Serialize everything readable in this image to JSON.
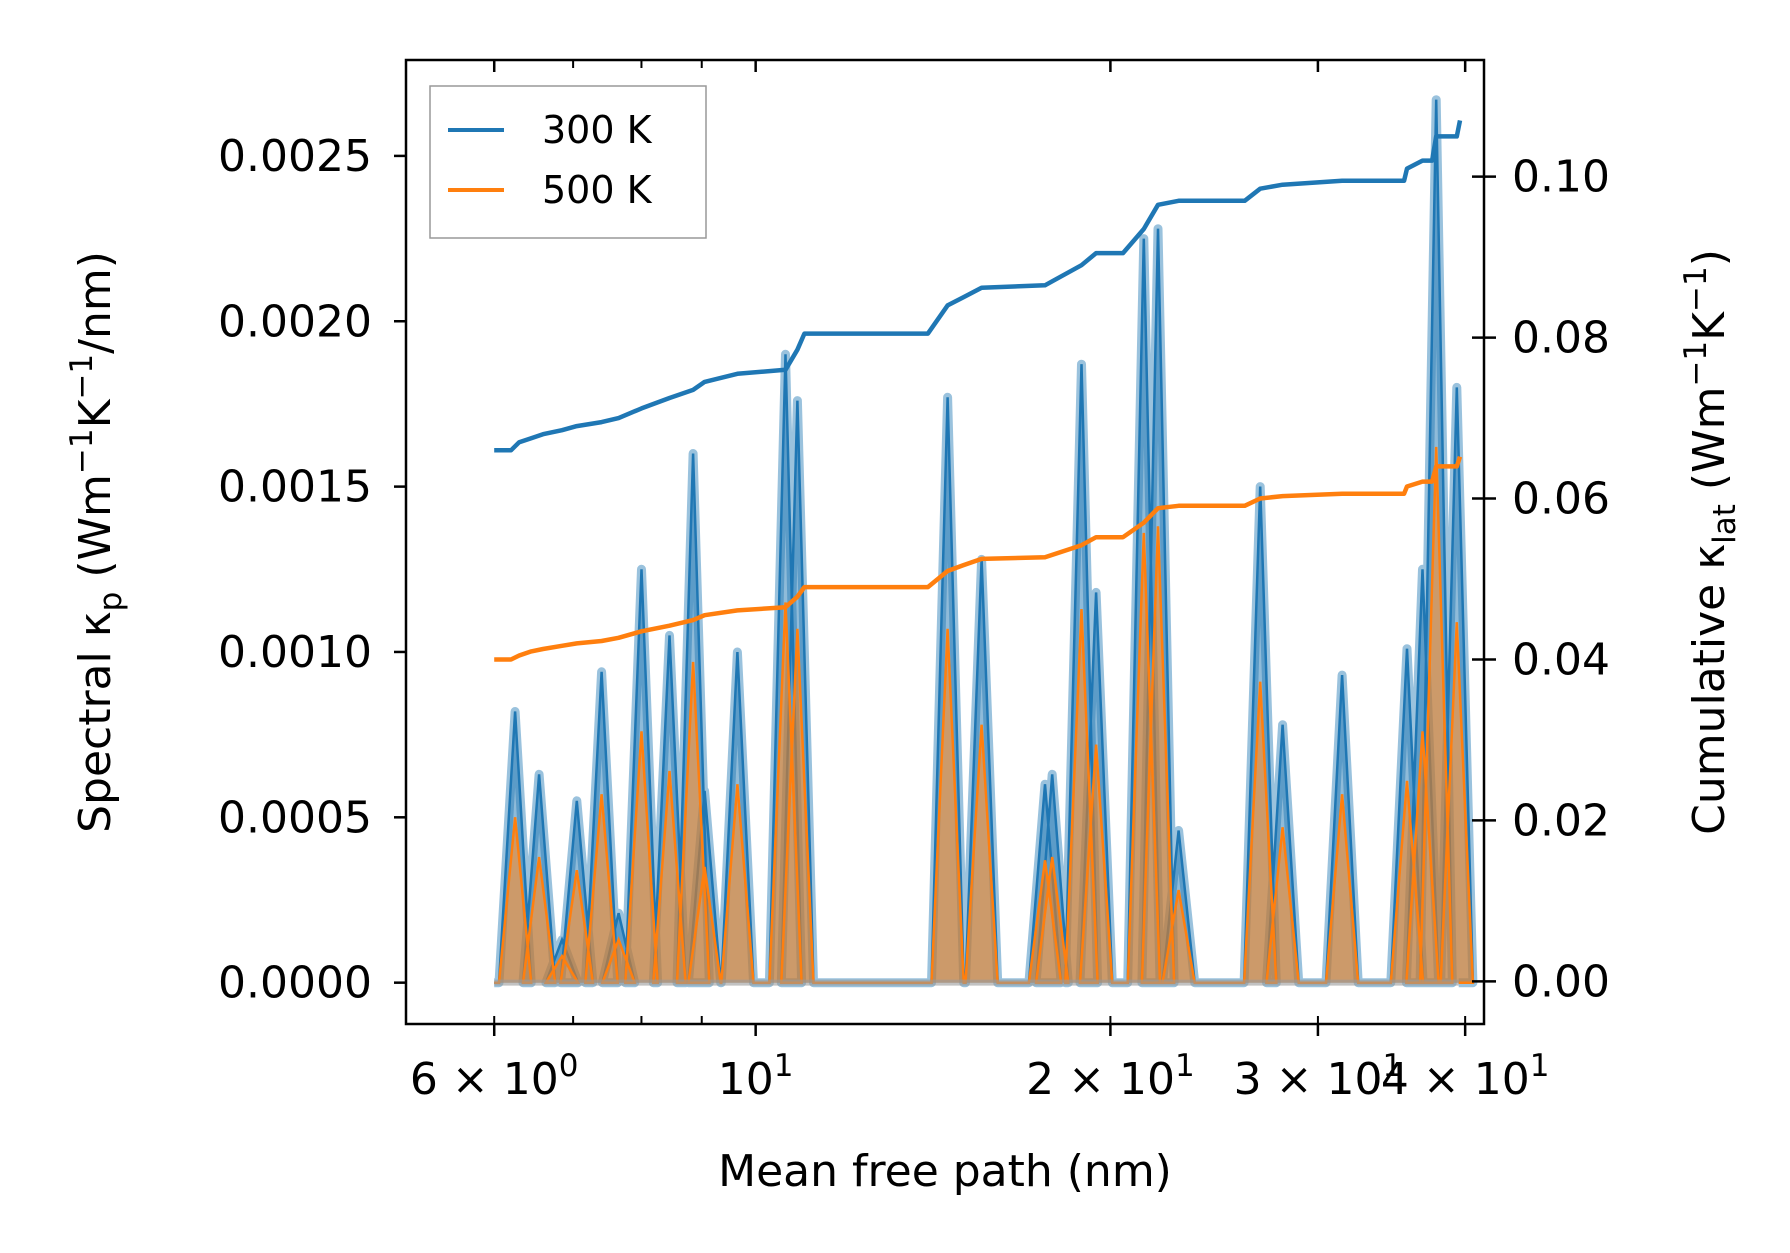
{
  "chart_data": {
    "type": "line",
    "title": "",
    "xlabel": "Mean free path (nm)",
    "ylabel_left": "Spectral κp (Wm⁻¹K⁻¹/nm)",
    "ylabel_right": "Cumulative κlat (Wm⁻¹K⁻¹)",
    "xscale": "log",
    "xlim": [
      5.05,
      41.5
    ],
    "ylim_left": [
      -0.000125,
      0.00279
    ],
    "ylim_right": [
      -0.0053,
      0.1145
    ],
    "x_ticks": [
      {
        "value": 6,
        "mantissa": "6",
        "base": "10",
        "exp": "0"
      },
      {
        "value": 10,
        "mantissa": "",
        "base": "10",
        "exp": "1"
      },
      {
        "value": 20,
        "mantissa": "2",
        "base": "10",
        "exp": "1"
      },
      {
        "value": 30,
        "mantissa": "3",
        "base": "10",
        "exp": "1"
      },
      {
        "value": 40,
        "mantissa": "4",
        "base": "10",
        "exp": "1"
      }
    ],
    "y_ticks_left": [
      "0.0000",
      "0.0005",
      "0.0010",
      "0.0015",
      "0.0020",
      "0.0025"
    ],
    "y_ticks_left_values": [
      0,
      0.0005,
      0.001,
      0.0015,
      0.002,
      0.0025
    ],
    "y_ticks_right": [
      "0.00",
      "0.02",
      "0.04",
      "0.06",
      "0.08",
      "0.10"
    ],
    "y_ticks_right_values": [
      0,
      0.02,
      0.04,
      0.06,
      0.08,
      0.1
    ],
    "legend": {
      "position": "top-left",
      "entries": [
        "300 K",
        "500 K"
      ]
    },
    "colors": {
      "300 K": "#1f77b4",
      "500 K": "#ff7f0e",
      "fill_300": "#1f77b4",
      "fill_500": "#ff7f0e"
    },
    "spectral": {
      "x_range": [
        6.0,
        39.5
      ],
      "peaks": [
        {
          "x": 6.25,
          "k300": 0.00082,
          "k500": 0.0005
        },
        {
          "x": 6.55,
          "k300": 0.00063,
          "k500": 0.00038
        },
        {
          "x": 6.85,
          "k300": 0.00013,
          "k500": 8e-05
        },
        {
          "x": 7.05,
          "k300": 0.00055,
          "k500": 0.00034
        },
        {
          "x": 7.4,
          "k300": 0.00094,
          "k500": 0.00057
        },
        {
          "x": 7.65,
          "k300": 0.00021,
          "k500": 0.00013
        },
        {
          "x": 8.0,
          "k300": 0.00125,
          "k500": 0.00076
        },
        {
          "x": 8.45,
          "k300": 0.00105,
          "k500": 0.00064
        },
        {
          "x": 8.85,
          "k300": 0.0016,
          "k500": 0.00097
        },
        {
          "x": 9.05,
          "k300": 0.00058,
          "k500": 0.00035
        },
        {
          "x": 9.65,
          "k300": 0.001,
          "k500": 0.0006
        },
        {
          "x": 10.6,
          "k300": 0.0019,
          "k500": 0.00115
        },
        {
          "x": 10.85,
          "k300": 0.00176,
          "k500": 0.00107
        },
        {
          "x": 14.55,
          "k300": 0.00177,
          "k500": 0.00107
        },
        {
          "x": 15.55,
          "k300": 0.00128,
          "k500": 0.00078
        },
        {
          "x": 17.6,
          "k300": 0.0006,
          "k500": 0.00037
        },
        {
          "x": 17.85,
          "k300": 0.00063,
          "k500": 0.00038
        },
        {
          "x": 18.9,
          "k300": 0.00187,
          "k500": 0.00113
        },
        {
          "x": 19.45,
          "k300": 0.00118,
          "k500": 0.00072
        },
        {
          "x": 21.35,
          "k300": 0.00225,
          "k500": 0.00136
        },
        {
          "x": 21.95,
          "k300": 0.00228,
          "k500": 0.00138
        },
        {
          "x": 22.85,
          "k300": 0.00046,
          "k500": 0.00028
        },
        {
          "x": 26.8,
          "k300": 0.0015,
          "k500": 0.00091
        },
        {
          "x": 28.0,
          "k300": 0.00078,
          "k500": 0.00047
        },
        {
          "x": 31.45,
          "k300": 0.00093,
          "k500": 0.00057
        },
        {
          "x": 35.7,
          "k300": 0.00101,
          "k500": 0.00061
        },
        {
          "x": 36.8,
          "k300": 0.00125,
          "k500": 0.00076
        },
        {
          "x": 37.8,
          "k300": 0.00267,
          "k500": 0.00162
        },
        {
          "x": 39.35,
          "k300": 0.0018,
          "k500": 0.00109
        }
      ]
    },
    "series": [
      {
        "name": "300 K",
        "axis": "right",
        "points": [
          [
            6.0,
            0.066
          ],
          [
            6.2,
            0.066
          ],
          [
            6.3,
            0.067
          ],
          [
            6.45,
            0.0675
          ],
          [
            6.6,
            0.068
          ],
          [
            6.85,
            0.0685
          ],
          [
            7.05,
            0.069
          ],
          [
            7.4,
            0.0695
          ],
          [
            7.65,
            0.07
          ],
          [
            8.0,
            0.0712
          ],
          [
            8.45,
            0.0725
          ],
          [
            8.85,
            0.0735
          ],
          [
            9.05,
            0.0745
          ],
          [
            9.65,
            0.0755
          ],
          [
            10.6,
            0.076
          ],
          [
            10.85,
            0.0785
          ],
          [
            11.0,
            0.0805
          ],
          [
            14.0,
            0.0805
          ],
          [
            14.55,
            0.084
          ],
          [
            15.0,
            0.085
          ],
          [
            15.55,
            0.0862
          ],
          [
            17.6,
            0.0865
          ],
          [
            17.85,
            0.087
          ],
          [
            18.9,
            0.089
          ],
          [
            19.45,
            0.0905
          ],
          [
            20.5,
            0.0905
          ],
          [
            21.35,
            0.0935
          ],
          [
            21.95,
            0.0965
          ],
          [
            22.85,
            0.097
          ],
          [
            26.0,
            0.097
          ],
          [
            26.8,
            0.0985
          ],
          [
            28.0,
            0.099
          ],
          [
            31.45,
            0.0995
          ],
          [
            35.5,
            0.0995
          ],
          [
            35.7,
            0.101
          ],
          [
            36.8,
            0.102
          ],
          [
            37.5,
            0.102
          ],
          [
            37.8,
            0.105
          ],
          [
            39.35,
            0.105
          ],
          [
            39.6,
            0.107
          ]
        ]
      },
      {
        "name": "500 K",
        "axis": "right",
        "points": [
          [
            6.0,
            0.04
          ],
          [
            6.2,
            0.04
          ],
          [
            6.3,
            0.0405
          ],
          [
            6.45,
            0.041
          ],
          [
            6.6,
            0.0413
          ],
          [
            6.85,
            0.0417
          ],
          [
            7.05,
            0.042
          ],
          [
            7.4,
            0.0423
          ],
          [
            7.65,
            0.0427
          ],
          [
            8.0,
            0.0435
          ],
          [
            8.45,
            0.0442
          ],
          [
            8.85,
            0.0449
          ],
          [
            9.05,
            0.0455
          ],
          [
            9.65,
            0.0461
          ],
          [
            10.6,
            0.0465
          ],
          [
            10.85,
            0.0478
          ],
          [
            11.0,
            0.049
          ],
          [
            14.0,
            0.049
          ],
          [
            14.55,
            0.051
          ],
          [
            15.0,
            0.0517
          ],
          [
            15.55,
            0.0525
          ],
          [
            17.6,
            0.0527
          ],
          [
            17.85,
            0.053
          ],
          [
            18.9,
            0.0542
          ],
          [
            19.45,
            0.0552
          ],
          [
            20.5,
            0.0552
          ],
          [
            21.35,
            0.057
          ],
          [
            21.95,
            0.0588
          ],
          [
            22.85,
            0.0591
          ],
          [
            26.0,
            0.0591
          ],
          [
            26.8,
            0.06
          ],
          [
            28.0,
            0.0603
          ],
          [
            31.45,
            0.0606
          ],
          [
            35.5,
            0.0606
          ],
          [
            35.7,
            0.0615
          ],
          [
            36.8,
            0.0621
          ],
          [
            37.5,
            0.0621
          ],
          [
            37.8,
            0.064
          ],
          [
            39.35,
            0.064
          ],
          [
            39.6,
            0.0652
          ]
        ]
      }
    ]
  }
}
